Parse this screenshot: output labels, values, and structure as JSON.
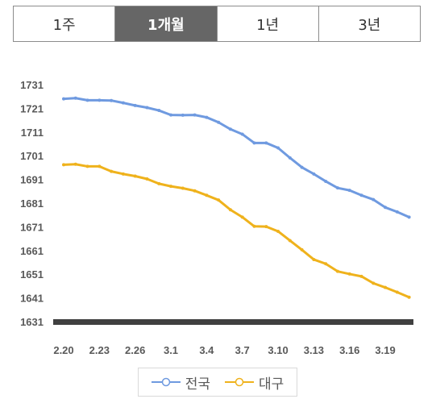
{
  "tabs": [
    {
      "label": "1주",
      "active": false
    },
    {
      "label": "1개월",
      "active": true
    },
    {
      "label": "1년",
      "active": false
    },
    {
      "label": "3년",
      "active": false
    }
  ],
  "colors": {
    "series_0": "#6f9ae0",
    "series_1": "#efb21c",
    "axis": "#404040",
    "tick_text": "#595959"
  },
  "chart_data": {
    "type": "line",
    "title": "",
    "xlabel": "",
    "ylabel": "",
    "ylim": [
      1631,
      1731
    ],
    "yticks": [
      1731,
      1721,
      1711,
      1701,
      1691,
      1681,
      1671,
      1661,
      1651,
      1641,
      1631
    ],
    "grid": false,
    "legend": "bottom",
    "x_tick_labels": [
      "2.20",
      "2.23",
      "2.26",
      "3.1",
      "3.4",
      "3.7",
      "3.10",
      "3.13",
      "3.16",
      "3.19"
    ],
    "x_tick_positions": [
      0,
      3,
      6,
      9,
      12,
      15,
      18,
      21,
      24,
      27
    ],
    "series": [
      {
        "name": "전국",
        "values": [
          1725,
          1725.3,
          1724.4,
          1724.4,
          1724.3,
          1723.3,
          1722.2,
          1721.3,
          1720.1,
          1718.2,
          1718.1,
          1718.2,
          1717.2,
          1715.1,
          1712.2,
          1710.1,
          1706.4,
          1706.4,
          1704.3,
          1700.1,
          1696.1,
          1693.3,
          1690.2,
          1687.4,
          1686.4,
          1684.3,
          1682.5,
          1679.2,
          1677.3,
          1675.1
        ]
      },
      {
        "name": "대구",
        "values": [
          1697.2,
          1697.4,
          1696.5,
          1696.5,
          1694.4,
          1693.3,
          1692.4,
          1691.2,
          1689.2,
          1688.1,
          1687.3,
          1686.2,
          1684.3,
          1682.3,
          1678.2,
          1675.1,
          1671.2,
          1671.1,
          1669.1,
          1665.2,
          1661.3,
          1657.2,
          1655.4,
          1652.2,
          1651.1,
          1650.1,
          1647.2,
          1645.4,
          1643.4,
          1641.3
        ]
      }
    ]
  }
}
